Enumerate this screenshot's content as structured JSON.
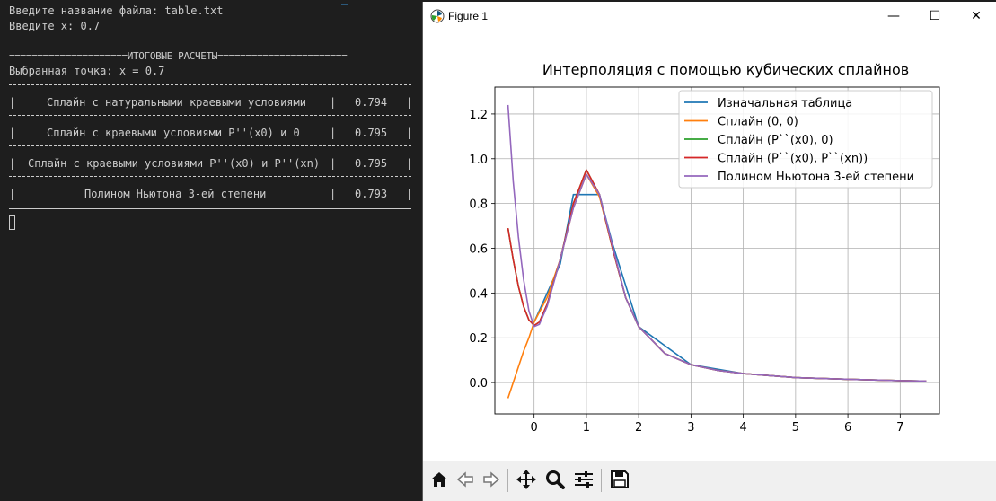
{
  "terminal": {
    "top_glyph": "_",
    "line_filename": "Введите название файла: table.txt",
    "line_x": "Введите x: 0.7",
    "line_header": "=====================ИТОГОВЫЕ РАСЧЕТЫ=======================",
    "line_point": "Выбранная точка: x = 0.7",
    "rows": [
      {
        "label": "Сплайн с натуральными краевыми условиями",
        "value": "0.794"
      },
      {
        "label": "Сплайн с краевыми условиями P''(x0) и 0",
        "value": "0.795"
      },
      {
        "label": "Сплайн с краевыми условиями P''(x0) и P''(xn)",
        "value": "0.795"
      },
      {
        "label": "Полином Ньютона 3-ей степени",
        "value": "0.793"
      }
    ],
    "pipe": "|"
  },
  "window": {
    "title": "Figure 1",
    "minimize": "—",
    "maximize": "☐",
    "close": "✕"
  },
  "toolbar": {
    "icons": [
      "home-icon",
      "back-arrow-icon",
      "forward-arrow-icon",
      "pan-icon",
      "zoom-icon",
      "subplots-icon",
      "save-icon"
    ]
  },
  "chart_data": {
    "type": "line",
    "title": "Интерполяция с помощью кубических сплайнов",
    "xlabel": "",
    "ylabel": "",
    "xlim": [
      -0.75,
      7.75
    ],
    "ylim": [
      -0.14,
      1.32
    ],
    "xticks": [
      0,
      1,
      2,
      3,
      4,
      5,
      6,
      7
    ],
    "yticks": [
      0.0,
      0.2,
      0.4,
      0.6,
      0.8,
      1.0,
      1.2
    ],
    "xtick_labels": [
      "0",
      "1",
      "2",
      "3",
      "4",
      "5",
      "6",
      "7"
    ],
    "ytick_labels": [
      "0.0",
      "0.2",
      "0.4",
      "0.6",
      "0.8",
      "1.0",
      "1.2"
    ],
    "grid": true,
    "legend_position": "top-right",
    "series": [
      {
        "name": "Изначальная таблица",
        "color": "#1f77b4",
        "x": [
          0,
          0.5,
          0.75,
          1.0,
          1.25,
          1.5,
          2,
          3,
          4,
          5,
          6,
          7,
          7.5
        ],
        "y": [
          0.27,
          0.53,
          0.84,
          0.84,
          0.84,
          0.62,
          0.25,
          0.08,
          0.04,
          0.022,
          0.015,
          0.009,
          0.007
        ]
      },
      {
        "name": "Сплайн (0, 0)",
        "color": "#ff7f0e",
        "x": [
          -0.5,
          -0.4,
          -0.3,
          -0.2,
          -0.1,
          0,
          0.25,
          0.5,
          0.75,
          1.0,
          1.25,
          1.5,
          1.75,
          2,
          2.5,
          3,
          3.5,
          4,
          5,
          6,
          7,
          7.5
        ],
        "y": [
          -0.07,
          0.0,
          0.07,
          0.14,
          0.2,
          0.27,
          0.38,
          0.55,
          0.78,
          0.93,
          0.83,
          0.6,
          0.38,
          0.25,
          0.13,
          0.08,
          0.055,
          0.04,
          0.022,
          0.015,
          0.009,
          0.007
        ]
      },
      {
        "name": "Сплайн (P``(x0), 0)",
        "color": "#2ca02c",
        "x": [
          -0.5,
          -0.4,
          -0.3,
          -0.2,
          -0.1,
          0,
          0.1,
          0.25,
          0.5,
          0.75,
          1.0,
          1.25,
          1.5,
          1.75,
          2,
          2.5,
          3,
          3.5,
          4,
          5,
          6,
          7,
          7.5
        ],
        "y": [
          0.69,
          0.55,
          0.43,
          0.34,
          0.28,
          0.255,
          0.27,
          0.35,
          0.55,
          0.8,
          0.95,
          0.84,
          0.6,
          0.38,
          0.25,
          0.13,
          0.08,
          0.055,
          0.04,
          0.022,
          0.015,
          0.009,
          0.007
        ]
      },
      {
        "name": "Сплайн (P``(x0), P``(xn))",
        "color": "#d62728",
        "x": [
          -0.5,
          -0.4,
          -0.3,
          -0.2,
          -0.1,
          0,
          0.1,
          0.25,
          0.5,
          0.75,
          1.0,
          1.25,
          1.5,
          1.75,
          2,
          2.5,
          3,
          3.5,
          4,
          5,
          6,
          7,
          7.5
        ],
        "y": [
          0.69,
          0.55,
          0.43,
          0.34,
          0.28,
          0.255,
          0.27,
          0.35,
          0.55,
          0.8,
          0.95,
          0.84,
          0.6,
          0.38,
          0.25,
          0.13,
          0.08,
          0.055,
          0.04,
          0.022,
          0.015,
          0.009,
          0.007
        ]
      },
      {
        "name": "Полином Ньютона 3-ей степени",
        "color": "#9467bd",
        "x": [
          -0.5,
          -0.4,
          -0.3,
          -0.2,
          -0.1,
          0,
          0.1,
          0.25,
          0.5,
          0.75,
          1.0,
          1.25,
          1.5,
          1.75,
          2,
          2.5,
          3,
          3.5,
          4,
          5,
          6,
          7,
          7.5
        ],
        "y": [
          1.24,
          0.9,
          0.65,
          0.46,
          0.32,
          0.25,
          0.26,
          0.34,
          0.55,
          0.78,
          0.93,
          0.84,
          0.61,
          0.38,
          0.25,
          0.13,
          0.08,
          0.055,
          0.04,
          0.022,
          0.015,
          0.009,
          0.007
        ]
      }
    ]
  }
}
